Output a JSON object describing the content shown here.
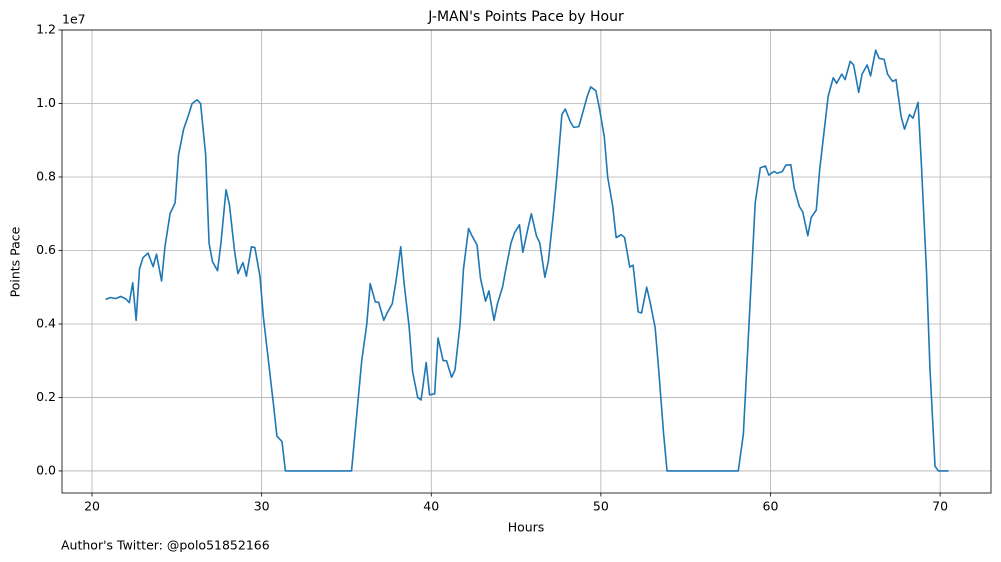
{
  "chart_data": {
    "type": "line",
    "title": "J-MAN's Points Pace by Hour",
    "x_label": "Hours",
    "y_label": "Points Pace",
    "y_offset_label": "1e7",
    "footnote": "Author's Twitter: @polo51852166",
    "grid": true,
    "xlim": [
      18.23,
      73.0
    ],
    "ylim": [
      -0.06,
      1.2
    ],
    "xticks": [
      20,
      30,
      40,
      50,
      60,
      70
    ],
    "yticks": [
      {
        "value": 0,
        "label": "0.0"
      },
      0.2,
      0.4,
      0.6,
      0.8,
      {
        "value": 1,
        "label": "1.0"
      },
      1.2
    ],
    "x": [
      20.8,
      21.1,
      21.4,
      21.7,
      22.0,
      22.2,
      22.4,
      22.6,
      22.8,
      23.0,
      23.3,
      23.6,
      23.8,
      24.1,
      24.3,
      24.6,
      24.9,
      25.1,
      25.4,
      25.7,
      25.9,
      26.2,
      26.4,
      26.7,
      26.9,
      27.1,
      27.4,
      27.6,
      27.9,
      28.1,
      28.4,
      28.6,
      28.9,
      29.1,
      29.4,
      29.6,
      29.9,
      30.1,
      30.4,
      30.7,
      30.9,
      31.2,
      31.4,
      35.3,
      35.6,
      35.9,
      36.2,
      36.4,
      36.7,
      36.9,
      37.2,
      37.4,
      37.7,
      37.9,
      38.2,
      38.4,
      38.7,
      38.9,
      39.2,
      39.4,
      39.7,
      39.9,
      40.2,
      40.4,
      40.7,
      40.9,
      41.2,
      41.4,
      41.7,
      41.9,
      42.2,
      42.4,
      42.7,
      42.9,
      43.2,
      43.4,
      43.7,
      43.9,
      44.2,
      44.4,
      44.7,
      44.9,
      45.2,
      45.4,
      45.7,
      45.9,
      46.2,
      46.4,
      46.7,
      46.9,
      47.2,
      47.4,
      47.7,
      47.9,
      48.2,
      48.4,
      48.7,
      48.9,
      49.2,
      49.4,
      49.7,
      49.9,
      50.2,
      50.4,
      50.7,
      50.9,
      51.2,
      51.4,
      51.7,
      51.9,
      52.2,
      52.4,
      52.7,
      52.9,
      53.2,
      53.4,
      53.7,
      53.9,
      58.1,
      58.4,
      58.6,
      58.9,
      59.1,
      59.4,
      59.7,
      59.9,
      60.2,
      60.4,
      60.7,
      60.9,
      61.2,
      61.4,
      61.7,
      61.9,
      62.2,
      62.4,
      62.7,
      62.9,
      63.2,
      63.4,
      63.7,
      63.9,
      64.2,
      64.4,
      64.7,
      64.9,
      65.2,
      65.4,
      65.7,
      65.9,
      66.2,
      66.4,
      66.7,
      66.9,
      67.2,
      67.4,
      67.7,
      67.9,
      68.2,
      68.4,
      68.7,
      68.9,
      69.2,
      69.4,
      69.7,
      69.9,
      70.2,
      70.5
    ],
    "series": [
      {
        "name": "Points Pace",
        "color": "#1f77b4",
        "values": [
          0.467,
          0.472,
          0.469,
          0.475,
          0.468,
          0.458,
          0.512,
          0.41,
          0.55,
          0.58,
          0.593,
          0.556,
          0.59,
          0.517,
          0.61,
          0.7,
          0.73,
          0.86,
          0.93,
          0.97,
          1.0,
          1.01,
          1.0,
          0.86,
          0.62,
          0.57,
          0.545,
          0.62,
          0.765,
          0.725,
          0.6,
          0.537,
          0.567,
          0.53,
          0.61,
          0.608,
          0.53,
          0.42,
          0.3,
          0.18,
          0.095,
          0.08,
          0,
          0,
          0.15,
          0.3,
          0.4,
          0.51,
          0.46,
          0.459,
          0.41,
          0.43,
          0.455,
          0.51,
          0.61,
          0.51,
          0.39,
          0.27,
          0.2,
          0.193,
          0.295,
          0.207,
          0.21,
          0.362,
          0.3,
          0.3,
          0.255,
          0.275,
          0.4,
          0.55,
          0.66,
          0.64,
          0.615,
          0.525,
          0.462,
          0.49,
          0.41,
          0.455,
          0.5,
          0.55,
          0.62,
          0.647,
          0.67,
          0.595,
          0.66,
          0.7,
          0.64,
          0.62,
          0.527,
          0.57,
          0.7,
          0.8,
          0.97,
          0.985,
          0.95,
          0.935,
          0.937,
          0.97,
          1.02,
          1.045,
          1.035,
          0.99,
          0.91,
          0.8,
          0.72,
          0.635,
          0.643,
          0.635,
          0.555,
          0.56,
          0.433,
          0.43,
          0.5,
          0.46,
          0.39,
          0.28,
          0.1,
          0,
          0,
          0.1,
          0.28,
          0.55,
          0.73,
          0.825,
          0.83,
          0.805,
          0.815,
          0.81,
          0.815,
          0.832,
          0.833,
          0.77,
          0.72,
          0.705,
          0.64,
          0.69,
          0.71,
          0.82,
          0.94,
          1.02,
          1.07,
          1.055,
          1.08,
          1.065,
          1.115,
          1.105,
          1.03,
          1.08,
          1.105,
          1.075,
          1.145,
          1.123,
          1.12,
          1.08,
          1.06,
          1.065,
          0.965,
          0.93,
          0.97,
          0.96,
          1.003,
          0.83,
          0.54,
          0.28,
          0.013,
          0,
          0,
          0
        ]
      }
    ]
  }
}
